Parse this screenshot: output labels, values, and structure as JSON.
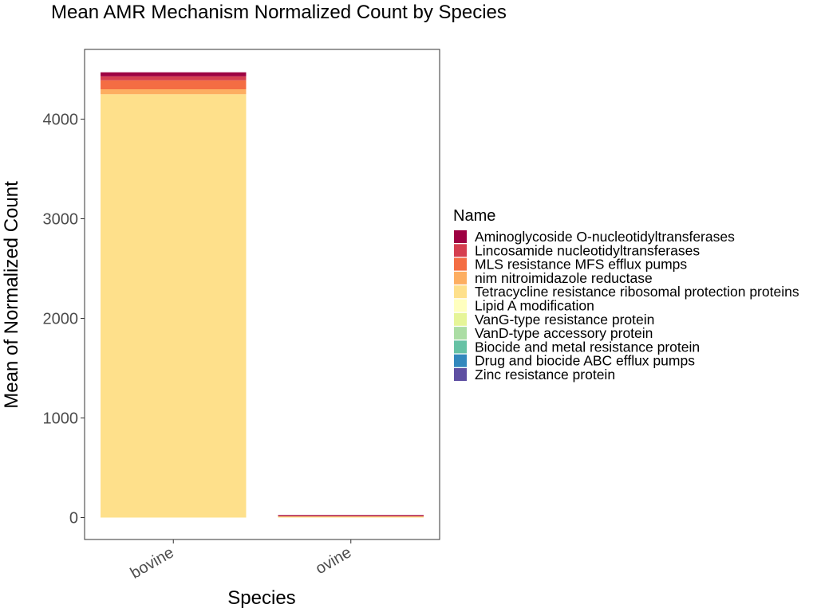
{
  "chart_data": {
    "type": "bar",
    "stacked": true,
    "title": "Mean AMR Mechanism Normalized Count by Species",
    "xlabel": "Species",
    "ylabel": "Mean of Normalized Count",
    "categories": [
      "bovine",
      "ovine"
    ],
    "ylim": [
      -220,
      4700
    ],
    "yticks": [
      0,
      1000,
      2000,
      3000,
      4000
    ],
    "legend_title": "Name",
    "legend_position": "right",
    "grid": false,
    "series": [
      {
        "name": "Aminoglycoside O-nucleotidyltransferases",
        "color": "#9E0142",
        "values": [
          40,
          1
        ]
      },
      {
        "name": "Lincosamide nucleotidyltransferases",
        "color": "#D53E4F",
        "values": [
          40,
          1
        ]
      },
      {
        "name": "MLS resistance MFS efflux pumps",
        "color": "#F46D43",
        "values": [
          90,
          3
        ]
      },
      {
        "name": "nim nitroimidazole reductase",
        "color": "#FDAE61",
        "values": [
          50,
          6
        ]
      },
      {
        "name": "Tetracycline resistance ribosomal protection proteins",
        "color": "#FEE08B",
        "values": [
          4250,
          14
        ]
      },
      {
        "name": "Lipid A modification",
        "color": "#FFFFBF",
        "values": [
          0,
          0
        ]
      },
      {
        "name": "VanG-type resistance protein",
        "color": "#E6F598",
        "values": [
          0,
          0
        ]
      },
      {
        "name": "VanD-type accessory protein",
        "color": "#ABDDA4",
        "values": [
          0,
          0
        ]
      },
      {
        "name": "Biocide and metal resistance protein",
        "color": "#66C2A5",
        "values": [
          0,
          0
        ]
      },
      {
        "name": "Drug and biocide ABC efflux pumps",
        "color": "#3288BD",
        "values": [
          0,
          0
        ]
      },
      {
        "name": "Zinc resistance protein",
        "color": "#5E4FA2",
        "values": [
          0,
          0
        ]
      }
    ]
  }
}
